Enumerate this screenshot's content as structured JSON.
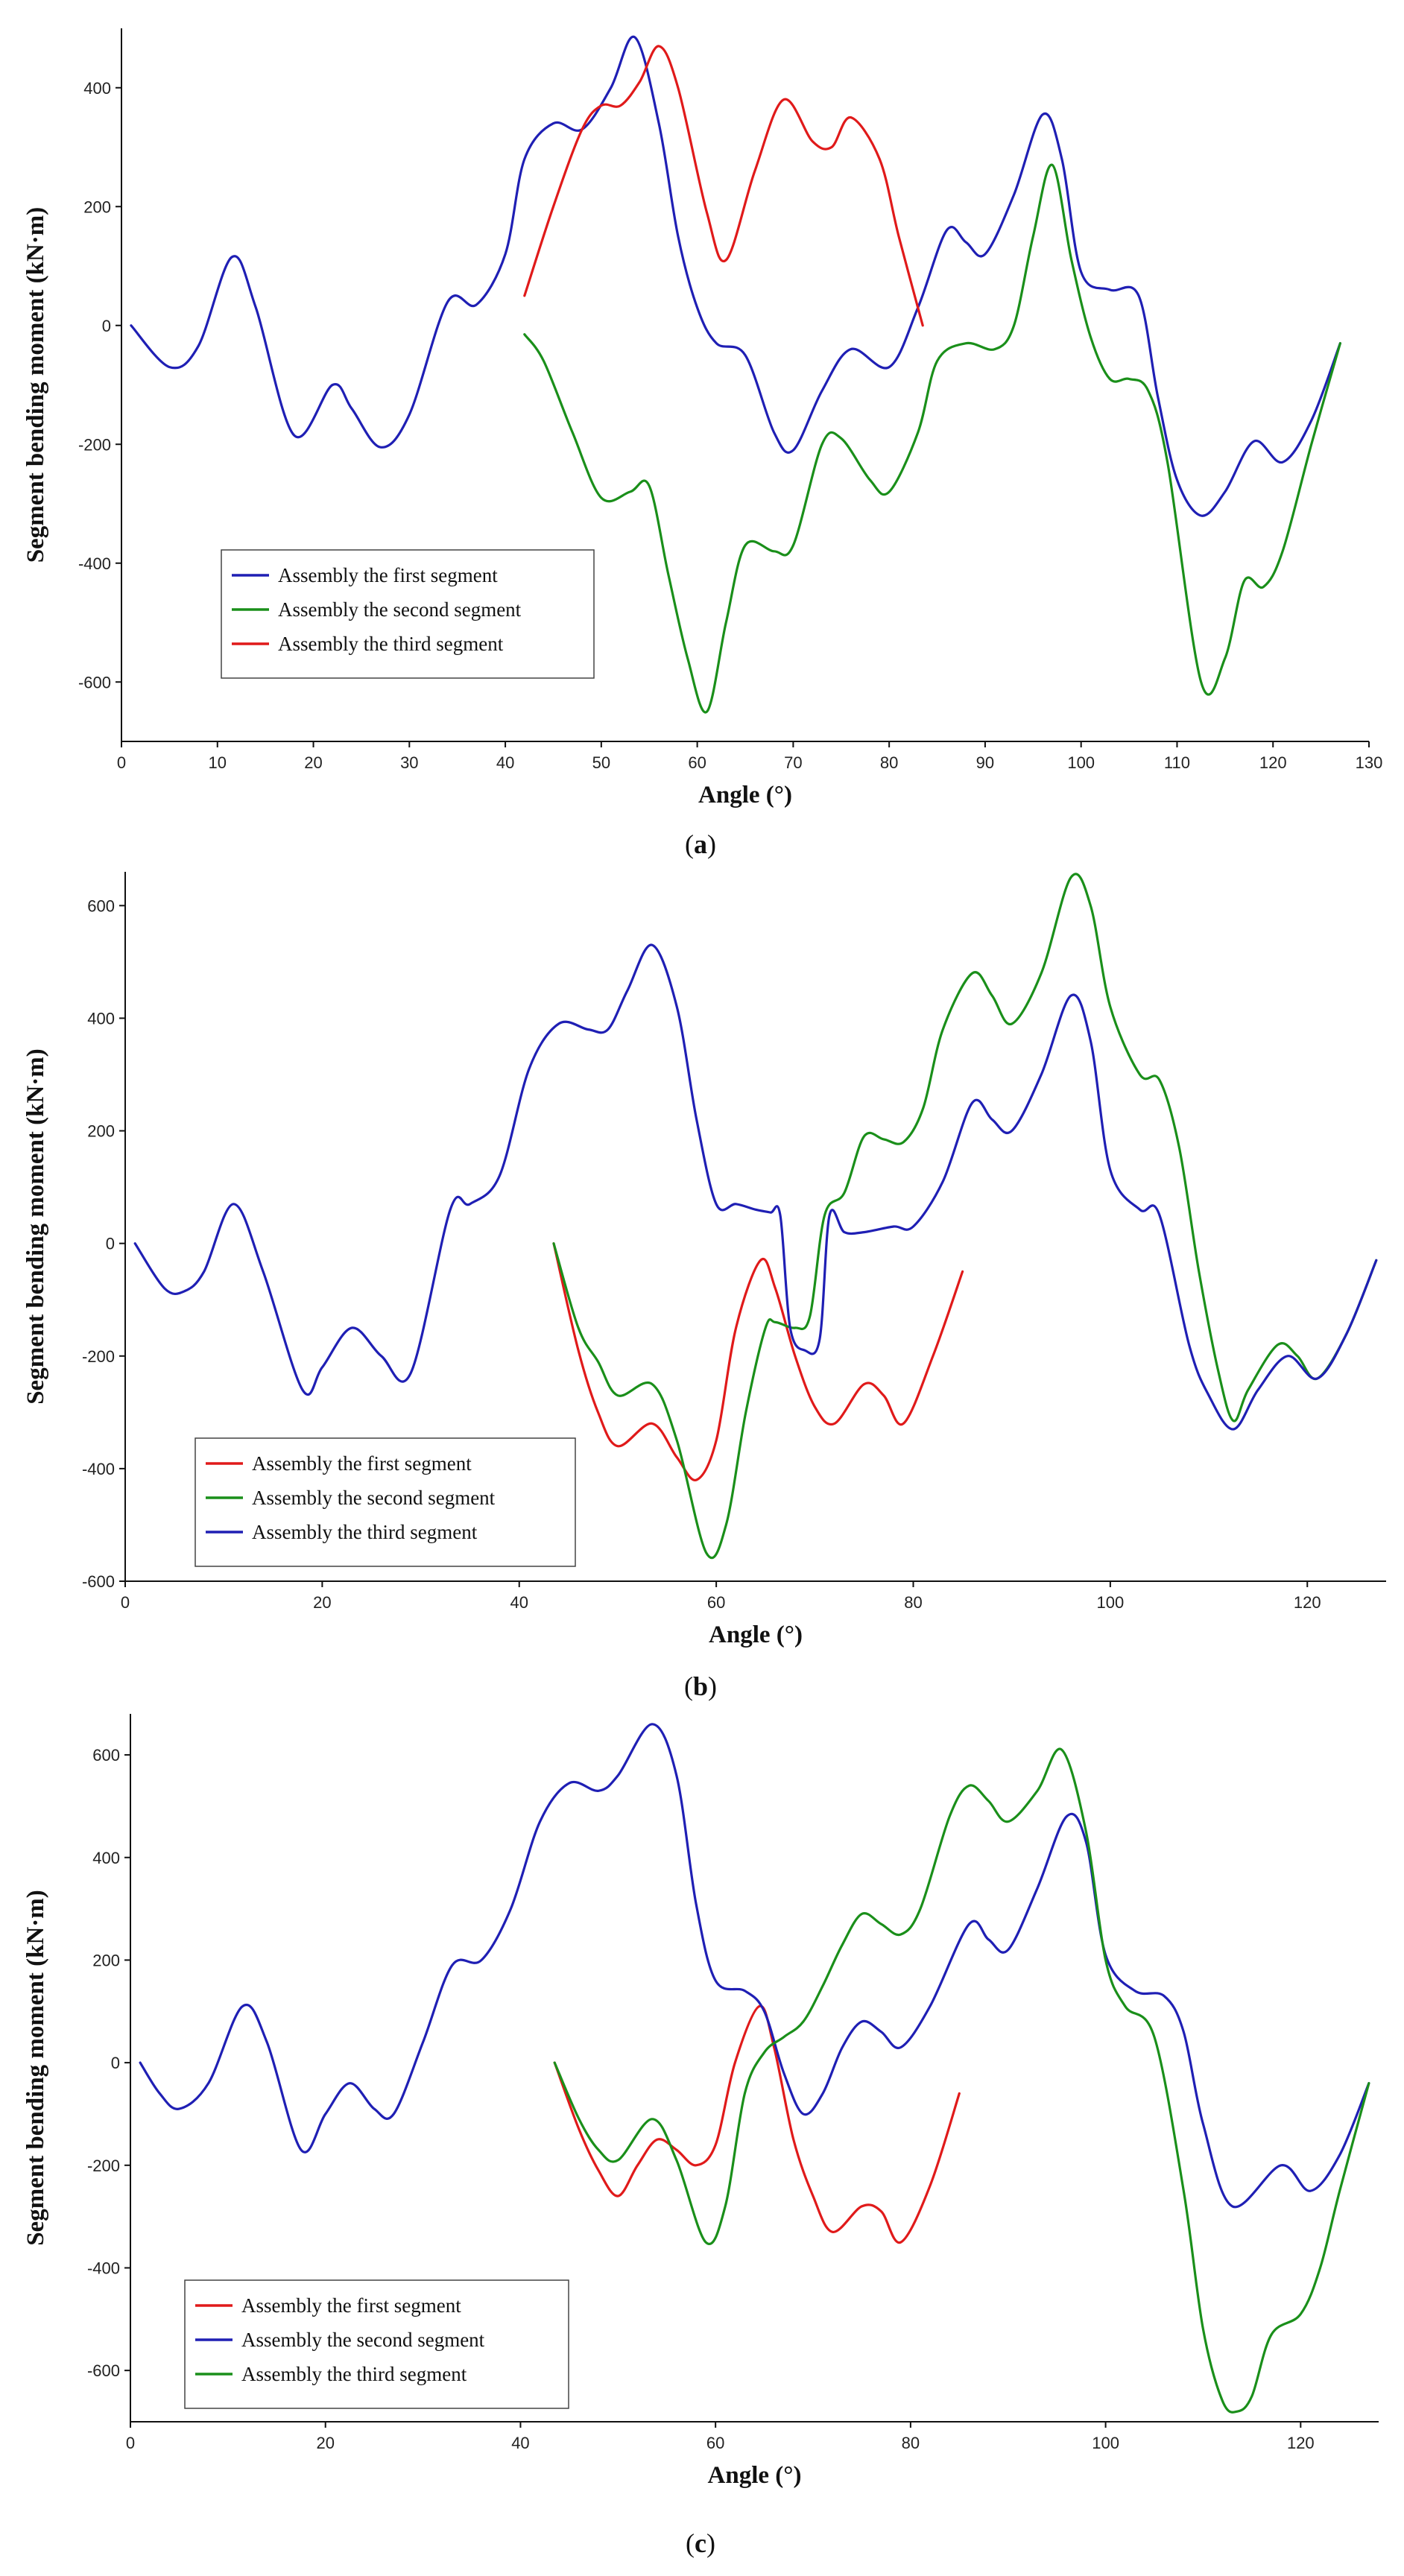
{
  "chart_data": [
    {
      "type": "line",
      "panel_label": "a",
      "xlabel": "Angle (°)",
      "ylabel": "Segment bending moment (kN·m)",
      "xlim": [
        0,
        130
      ],
      "ylim": [
        -700,
        500
      ],
      "xticks": [
        0,
        10,
        20,
        30,
        40,
        50,
        60,
        70,
        80,
        90,
        100,
        110,
        120,
        130
      ],
      "yticks": [
        -600,
        -400,
        -200,
        0,
        200,
        400
      ],
      "legend_position": "bottom-left",
      "series": [
        {
          "name": "Assembly the first segment",
          "color": "#1f1fb4",
          "x": [
            1,
            5,
            8,
            11.5,
            14,
            18,
            22,
            24,
            27,
            30,
            34,
            37,
            40,
            42,
            45,
            48,
            51,
            53.5,
            56,
            58,
            60,
            62,
            65,
            68,
            70,
            73,
            76,
            80,
            83,
            86,
            88,
            90,
            93,
            96,
            98,
            100,
            103,
            106,
            108,
            110,
            112.5,
            115,
            118,
            121,
            124,
            127
          ],
          "y": [
            0,
            -70,
            -35,
            115,
            30,
            -185,
            -100,
            -140,
            -205,
            -150,
            40,
            35,
            120,
            280,
            340,
            330,
            400,
            485,
            340,
            150,
            30,
            -30,
            -50,
            -180,
            -210,
            -110,
            -40,
            -70,
            30,
            160,
            140,
            120,
            220,
            355,
            280,
            90,
            60,
            50,
            -120,
            -260,
            -320,
            -280,
            -195,
            -230,
            -160,
            -30
          ]
        },
        {
          "name": "Assembly the second segment",
          "color": "#1a8f1a",
          "x": [
            42,
            44,
            47,
            50,
            53,
            55,
            57,
            59,
            61,
            63,
            65,
            68,
            70,
            73,
            75,
            78,
            80,
            83,
            85,
            88,
            91,
            93,
            95,
            97,
            99,
            101,
            103,
            105,
            107,
            109,
            112.5,
            115,
            117,
            119,
            121,
            124,
            127
          ],
          "y": [
            -15,
            -60,
            -180,
            -290,
            -280,
            -270,
            -420,
            -560,
            -650,
            -500,
            -370,
            -380,
            -370,
            -200,
            -190,
            -260,
            -280,
            -180,
            -60,
            -30,
            -40,
            0,
            150,
            270,
            110,
            -20,
            -90,
            -90,
            -110,
            -230,
            -600,
            -560,
            -430,
            -440,
            -380,
            -200,
            -30
          ]
        },
        {
          "name": "Assembly the third segment",
          "color": "#e01a1a",
          "x": [
            42,
            45,
            48,
            50,
            52,
            54,
            56,
            58,
            61,
            63,
            66,
            69,
            72,
            74,
            76,
            79,
            81,
            83.5
          ],
          "y": [
            50,
            200,
            330,
            370,
            370,
            410,
            470,
            400,
            190,
            110,
            260,
            380,
            310,
            300,
            350,
            280,
            150,
            0
          ]
        }
      ]
    },
    {
      "type": "line",
      "panel_label": "b",
      "xlabel": "Angle (°)",
      "ylabel": "Segment bending moment (kN·m)",
      "xlim": [
        0,
        128
      ],
      "ylim": [
        -600,
        660
      ],
      "xticks": [
        0,
        20,
        40,
        60,
        80,
        100,
        120
      ],
      "yticks": [
        -600,
        -400,
        -200,
        0,
        200,
        400,
        600
      ],
      "legend_position": "bottom-left",
      "series": [
        {
          "name": "Assembly the first segment",
          "color": "#e01a1a",
          "x": [
            43.5,
            46,
            48,
            50,
            53.5,
            56,
            58,
            60,
            62,
            64.5,
            66,
            68,
            70,
            72,
            75,
            77,
            79,
            82,
            85
          ],
          "y": [
            0,
            -190,
            -300,
            -360,
            -320,
            -380,
            -420,
            -350,
            -150,
            -30,
            -80,
            -200,
            -290,
            -320,
            -250,
            -270,
            -320,
            -200,
            -50
          ]
        },
        {
          "name": "Assembly the second segment",
          "color": "#1a8f1a",
          "x": [
            43.5,
            46,
            48,
            50,
            53.5,
            56,
            59,
            61,
            63,
            65,
            66,
            68,
            69.5,
            71,
            73,
            75,
            77,
            79,
            81,
            83,
            86,
            88,
            90,
            93,
            96,
            98,
            100,
            103,
            105,
            107,
            109,
            111,
            112.5,
            114,
            117,
            119,
            121,
            124,
            127
          ],
          "y": [
            0,
            -150,
            -210,
            -270,
            -250,
            -350,
            -550,
            -500,
            -300,
            -150,
            -140,
            -150,
            -130,
            50,
            90,
            190,
            185,
            180,
            240,
            380,
            480,
            440,
            390,
            480,
            650,
            600,
            420,
            300,
            290,
            170,
            -50,
            -230,
            -315,
            -260,
            -180,
            -200,
            -240,
            -160,
            -30
          ]
        },
        {
          "name": "Assembly the third segment",
          "color": "#1f1fb4",
          "x": [
            1,
            4,
            6,
            8,
            11,
            14,
            18,
            20,
            23,
            26,
            29,
            33,
            35,
            38,
            41,
            44,
            47,
            49,
            51,
            53.5,
            56,
            58,
            60,
            62,
            64,
            65.5,
            66.5,
            67.5,
            69,
            70.5,
            71.5,
            73,
            75,
            78,
            80,
            83,
            86,
            88,
            90,
            93,
            96,
            98,
            100,
            103,
            105,
            108,
            110,
            112.5,
            115,
            118,
            121,
            124,
            127
          ],
          "y": [
            0,
            -80,
            -85,
            -50,
            70,
            -50,
            -260,
            -220,
            -150,
            -200,
            -230,
            60,
            70,
            120,
            310,
            390,
            380,
            380,
            450,
            530,
            420,
            220,
            70,
            70,
            60,
            55,
            50,
            -150,
            -190,
            -170,
            50,
            20,
            20,
            30,
            30,
            110,
            250,
            220,
            200,
            300,
            440,
            360,
            130,
            60,
            50,
            -180,
            -270,
            -330,
            -260,
            -200,
            -240,
            -160,
            -30
          ]
        }
      ]
    },
    {
      "type": "line",
      "panel_label": "c",
      "xlabel": "Angle (°)",
      "ylabel": "Segment bending moment (kN·m)",
      "xlim": [
        0,
        128
      ],
      "ylim": [
        -700,
        680
      ],
      "xticks": [
        0,
        20,
        40,
        60,
        80,
        100,
        120
      ],
      "yticks": [
        -600,
        -400,
        -200,
        0,
        200,
        400,
        600
      ],
      "legend_position": "bottom-left",
      "series": [
        {
          "name": "Assembly the first segment",
          "color": "#e01a1a",
          "x": [
            43.5,
            46,
            48,
            50,
            52,
            54,
            56,
            58,
            60,
            62,
            64.5,
            66,
            68,
            70,
            72,
            75,
            77,
            79,
            82,
            85
          ],
          "y": [
            0,
            -130,
            -210,
            -260,
            -200,
            -150,
            -170,
            -200,
            -160,
            0,
            110,
            30,
            -150,
            -260,
            -330,
            -280,
            -290,
            -350,
            -240,
            -60
          ]
        },
        {
          "name": "Assembly the second segment",
          "color": "#1f1fb4",
          "x": [
            1,
            3,
            5,
            8,
            11.5,
            14,
            17.5,
            20,
            22.5,
            25,
            27,
            30,
            33,
            36,
            39,
            42,
            45,
            48,
            50,
            53.5,
            56,
            58,
            60,
            63,
            65,
            67,
            69,
            71,
            73,
            75,
            77,
            79,
            82,
            86,
            88,
            90,
            93,
            96,
            98,
            100,
            103,
            106,
            108,
            110,
            113,
            118,
            121,
            124,
            127
          ],
          "y": [
            0,
            -60,
            -90,
            -40,
            110,
            40,
            -170,
            -100,
            -40,
            -90,
            -100,
            40,
            190,
            200,
            300,
            470,
            545,
            530,
            560,
            660,
            560,
            310,
            160,
            140,
            100,
            -20,
            -100,
            -60,
            30,
            80,
            60,
            30,
            110,
            270,
            240,
            220,
            340,
            480,
            430,
            210,
            140,
            130,
            60,
            -120,
            -280,
            -200,
            -250,
            -180,
            -40
          ]
        },
        {
          "name": "Assembly the third segment",
          "color": "#1a8f1a",
          "x": [
            43.5,
            46,
            48,
            50,
            53.5,
            56,
            59,
            61,
            63,
            65,
            67,
            69,
            71,
            73,
            75,
            77,
            79,
            81,
            84,
            86,
            88,
            90,
            93,
            95.5,
            98,
            100,
            102,
            105,
            108,
            110,
            112,
            113.5,
            115,
            117,
            120,
            122,
            124,
            127
          ],
          "y": [
            0,
            -110,
            -170,
            -190,
            -110,
            -190,
            -350,
            -280,
            -60,
            20,
            50,
            80,
            150,
            230,
            290,
            270,
            250,
            300,
            480,
            540,
            510,
            470,
            530,
            610,
            450,
            200,
            110,
            50,
            -250,
            -520,
            -660,
            -680,
            -650,
            -530,
            -490,
            -400,
            -250,
            -40
          ]
        }
      ]
    }
  ],
  "captions": [
    "(a)",
    "(b)",
    "(c)"
  ]
}
